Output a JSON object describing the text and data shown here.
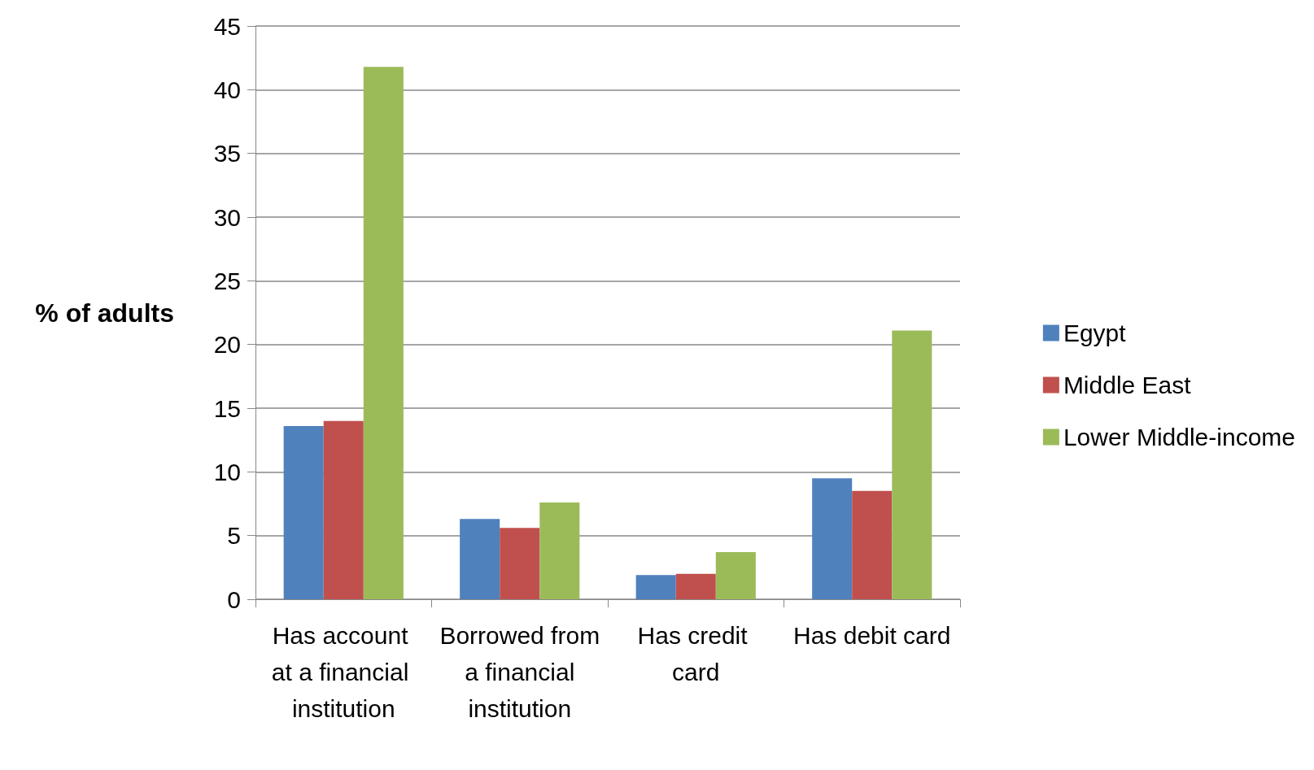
{
  "chart_data": {
    "type": "bar",
    "ylabel": "% of adults",
    "categories": [
      "Has account at a financial institution",
      "Borrowed from a financial institution",
      "Has credit card",
      "Has debit card"
    ],
    "series": [
      {
        "name": "Egypt",
        "color": "#4f81bd",
        "values": [
          13.6,
          6.3,
          1.9,
          9.5
        ]
      },
      {
        "name": "Middle East",
        "color": "#c0504d",
        "values": [
          14.0,
          5.6,
          2.0,
          8.5
        ]
      },
      {
        "name": "Lower Middle-income",
        "color": "#9bbb59",
        "values": [
          41.8,
          7.6,
          3.7,
          21.1
        ]
      }
    ],
    "ylim": [
      0,
      45
    ],
    "yticks": [
      0,
      5,
      10,
      15,
      20,
      25,
      30,
      35,
      40,
      45
    ],
    "grid": "y",
    "legend": "right"
  }
}
